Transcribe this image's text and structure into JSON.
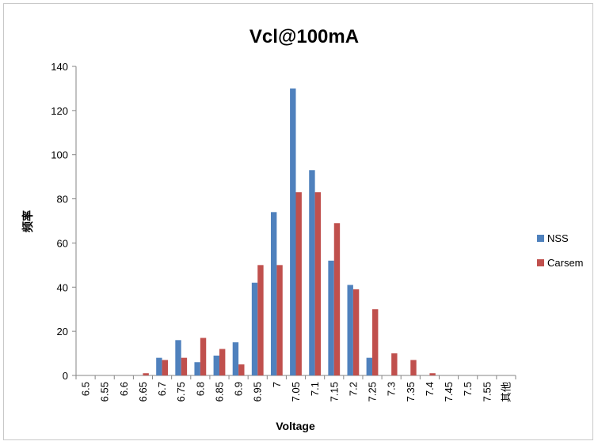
{
  "chart_data": {
    "type": "bar",
    "title": "Vcl@100mA",
    "xlabel": "Voltage",
    "ylabel": "频率",
    "ylim": [
      0,
      140
    ],
    "yticks": [
      0,
      20,
      40,
      60,
      80,
      100,
      120,
      140
    ],
    "grid": false,
    "legend_position": "right",
    "categories": [
      "6.5",
      "6.55",
      "6.6",
      "6.65",
      "6.7",
      "6.75",
      "6.8",
      "6.85",
      "6.9",
      "6.95",
      "7",
      "7.05",
      "7.1",
      "7.15",
      "7.2",
      "7.25",
      "7.3",
      "7.35",
      "7.4",
      "7.45",
      "7.5",
      "7.55",
      "其他"
    ],
    "series": [
      {
        "name": "NSS",
        "color": "#4f81bd",
        "values": [
          0,
          0,
          0,
          0,
          8,
          16,
          6,
          9,
          15,
          42,
          74,
          130,
          93,
          52,
          41,
          8,
          0,
          0,
          0,
          0,
          0,
          0,
          0
        ]
      },
      {
        "name": "Carsem",
        "color": "#c0504d",
        "values": [
          0,
          0,
          0,
          1,
          7,
          8,
          17,
          12,
          5,
          50,
          50,
          83,
          83,
          69,
          39,
          30,
          10,
          7,
          1,
          0,
          0,
          0,
          0
        ]
      }
    ]
  }
}
